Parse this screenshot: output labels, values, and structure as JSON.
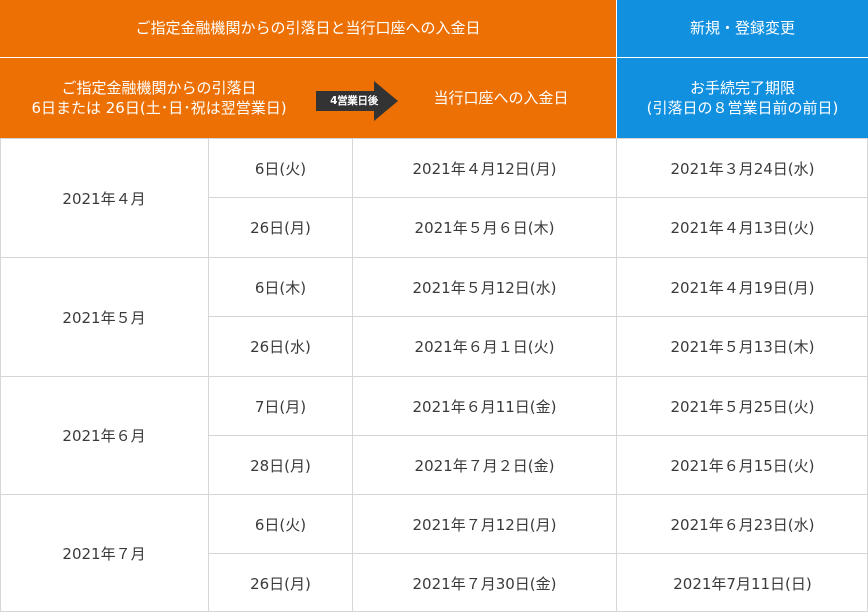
{
  "header": {
    "top_left": "ご指定金融機関からの引落日と当行口座への入金日",
    "top_right": "新規・登録変更",
    "col_withdrawal_line1": "ご指定金融機関からの引落日",
    "col_withdrawal_line2": "6日または 26日(土･日･祝は翌営業日)",
    "arrow_label": "4営業日後",
    "col_deposit": "当行口座への入金日",
    "col_deadline_line1": "お手続完了期限",
    "col_deadline_line2": "(引落日の８営業日前の前日)"
  },
  "rows": [
    {
      "month": "2021年４月",
      "entries": [
        {
          "withdrawal": "6日(火)",
          "deposit": "2021年４月12日(月)",
          "deadline": "2021年３月24日(水)"
        },
        {
          "withdrawal": "26日(月)",
          "deposit": "2021年５月６日(木)",
          "deadline": "2021年４月13日(火)"
        }
      ]
    },
    {
      "month": "2021年５月",
      "entries": [
        {
          "withdrawal": "6日(木)",
          "deposit": "2021年５月12日(水)",
          "deadline": "2021年４月19日(月)"
        },
        {
          "withdrawal": "26日(水)",
          "deposit": "2021年６月１日(火)",
          "deadline": "2021年５月13日(木)"
        }
      ]
    },
    {
      "month": "2021年６月",
      "entries": [
        {
          "withdrawal": "7日(月)",
          "deposit": "2021年６月11日(金)",
          "deadline": "2021年５月25日(火)"
        },
        {
          "withdrawal": "28日(月)",
          "deposit": "2021年７月２日(金)",
          "deadline": "2021年６月15日(火)"
        }
      ]
    },
    {
      "month": "2021年７月",
      "entries": [
        {
          "withdrawal": "6日(火)",
          "deposit": "2021年７月12日(月)",
          "deadline": "2021年６月23日(水)"
        },
        {
          "withdrawal": "26日(月)",
          "deposit": "2021年７月30日(金)",
          "deadline": "2021年7月11日(日)"
        }
      ]
    }
  ],
  "colors": {
    "orange": "#ec7003",
    "blue": "#1190e0",
    "arrow": "#333333",
    "grid": "#d6d6d6"
  }
}
